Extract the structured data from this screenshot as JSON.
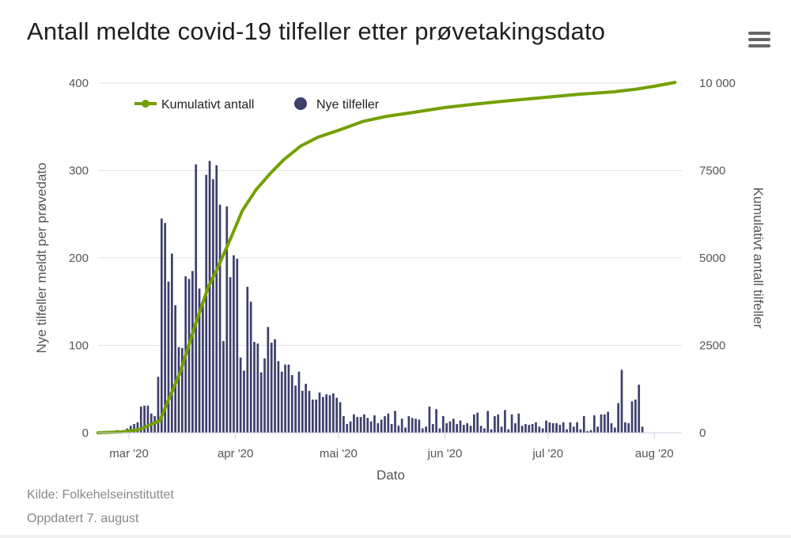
{
  "title": "Antall meldte covid-19 tilfeller etter prøvetakingsdato",
  "menu_icon": "hamburger-menu-icon",
  "footer": {
    "source": "Kilde: Folkehelseinstituttet",
    "updated": "Oppdatert 7. august"
  },
  "colors": {
    "bars": "#3d3f6b",
    "line": "#72a000",
    "grid": "#e3e3e3",
    "axis": "#c9d0e6"
  },
  "chart_data": {
    "type": "bar+line",
    "xlabel": "Dato",
    "ylabel_left": "Nye tilfeller meldt per prøvedato",
    "ylabel_right": "Kumulativt antall tilfeller",
    "ylim_left": [
      0,
      400
    ],
    "ylim_right": [
      0,
      10000
    ],
    "y_ticks_left": [
      "0",
      "100",
      "200",
      "300",
      "400"
    ],
    "y_ticks_right": [
      "0",
      "2500",
      "5000",
      "7500",
      "10 000"
    ],
    "x_tick_labels": [
      "mar '20",
      "apr '20",
      "mai '20",
      "jun '20",
      "jul '20",
      "aug '20"
    ],
    "x_tick_dates": [
      "2020-03-01",
      "2020-04-01",
      "2020-05-01",
      "2020-06-01",
      "2020-07-01",
      "2020-08-01"
    ],
    "x_range": [
      "2020-02-21",
      "2020-08-09"
    ],
    "grid": true,
    "legend": {
      "position": "top-left",
      "entries": [
        "Kumulativt antall",
        "Nye tilfeller"
      ]
    },
    "series": [
      {
        "name": "Nye tilfeller",
        "type": "bar",
        "start_date": "2020-02-21",
        "values": [
          1,
          1,
          2,
          1,
          2,
          3,
          2,
          1,
          5,
          8,
          10,
          12,
          30,
          31,
          31,
          22,
          19,
          64,
          245,
          240,
          173,
          205,
          146,
          98,
          97,
          179,
          176,
          185,
          307,
          165,
          146,
          295,
          311,
          290,
          306,
          261,
          105,
          259,
          178,
          203,
          199,
          86,
          71,
          167,
          150,
          104,
          102,
          69,
          85,
          121,
          103,
          107,
          82,
          70,
          78,
          78,
          66,
          54,
          70,
          48,
          56,
          48,
          38,
          38,
          46,
          41,
          44,
          43,
          45,
          40,
          35,
          19,
          10,
          13,
          21,
          18,
          18,
          21,
          17,
          13,
          20,
          11,
          15,
          19,
          22,
          10,
          25,
          8,
          16,
          6,
          19,
          17,
          16,
          15,
          5,
          7,
          30,
          10,
          27,
          5,
          19,
          11,
          13,
          16,
          10,
          14,
          9,
          11,
          8,
          21,
          23,
          8,
          5,
          25,
          4,
          19,
          21,
          7,
          26,
          4,
          21,
          11,
          22,
          8,
          10,
          9,
          10,
          12,
          7,
          5,
          14,
          12,
          11,
          11,
          9,
          12,
          4,
          12,
          7,
          12,
          4,
          19,
          2,
          3,
          20,
          7,
          21,
          21,
          24,
          11,
          6,
          34,
          72,
          12,
          11,
          36,
          38,
          55,
          7
        ]
      },
      {
        "name": "Kumulativt antall",
        "type": "line",
        "points": [
          [
            "2020-02-21",
            0
          ],
          [
            "2020-02-28",
            25
          ],
          [
            "2020-03-04",
            95
          ],
          [
            "2020-03-10",
            350
          ],
          [
            "2020-03-16",
            1750
          ],
          [
            "2020-03-20",
            3000
          ],
          [
            "2020-03-24",
            4150
          ],
          [
            "2020-03-27",
            4750
          ],
          [
            "2020-03-31",
            5650
          ],
          [
            "2020-04-03",
            6350
          ],
          [
            "2020-04-07",
            6950
          ],
          [
            "2020-04-11",
            7400
          ],
          [
            "2020-04-15",
            7800
          ],
          [
            "2020-04-20",
            8200
          ],
          [
            "2020-04-25",
            8450
          ],
          [
            "2020-05-01",
            8650
          ],
          [
            "2020-05-08",
            8900
          ],
          [
            "2020-05-15",
            9050
          ],
          [
            "2020-05-22",
            9150
          ],
          [
            "2020-06-01",
            9300
          ],
          [
            "2020-06-10",
            9400
          ],
          [
            "2020-06-20",
            9500
          ],
          [
            "2020-07-01",
            9600
          ],
          [
            "2020-07-10",
            9680
          ],
          [
            "2020-07-20",
            9750
          ],
          [
            "2020-07-27",
            9830
          ],
          [
            "2020-08-01",
            9910
          ],
          [
            "2020-08-07",
            10020
          ]
        ]
      }
    ]
  }
}
